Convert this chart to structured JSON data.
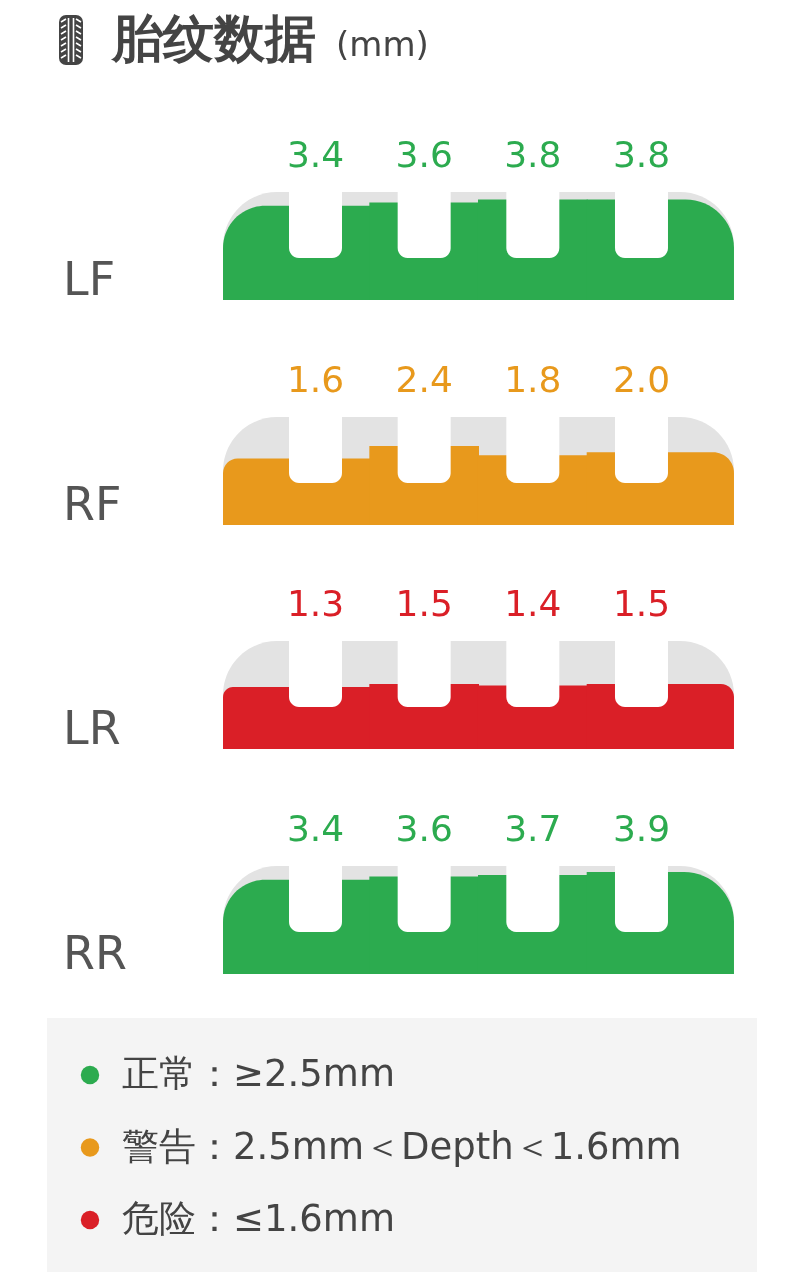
{
  "chart_data": [
    {
      "type": "other",
      "title": "胎纹数据",
      "subtitle": "(mm)",
      "ylabel": "LF",
      "categories": [
        null,
        null,
        null,
        null
      ],
      "color": "#2cab4f",
      "values": [
        3.4,
        3.6,
        3.8,
        3.8
      ],
      "value_labels": [
        "3.4",
        "3.6",
        "3.8",
        "3.8"
      ]
    },
    {
      "type": "other",
      "ylabel": "RF",
      "categories": [
        null,
        null,
        null,
        null
      ],
      "color": "#e8991c",
      "values": [
        1.6,
        2.4,
        1.8,
        2.0
      ],
      "value_labels": [
        "1.6",
        "2.4",
        "1.8",
        "2.0"
      ]
    },
    {
      "type": "other",
      "ylabel": "LR",
      "categories": [
        null,
        null,
        null,
        null
      ],
      "color": "#da1f27",
      "values": [
        1.3,
        1.5,
        1.4,
        1.5
      ],
      "value_labels": [
        "1.3",
        "1.5",
        "1.4",
        "1.5"
      ]
    },
    {
      "type": "other",
      "ylabel": "RR",
      "categories": [
        null,
        null,
        null,
        null
      ],
      "color": "#2cab4f",
      "values": [
        3.4,
        3.6,
        3.7,
        3.9
      ],
      "value_labels": [
        "3.4",
        "3.6",
        "3.7",
        "3.9"
      ]
    },
    {
      "type": "other",
      "annotations": [
        "正常：≥2.5mm",
        "警告：2.5mm＜Depth＜1.6mm",
        "危险：≤1.6mm"
      ],
      "colors": [
        "#2cab4f",
        "#e8991c",
        "#da1f27"
      ]
    }
  ]
}
